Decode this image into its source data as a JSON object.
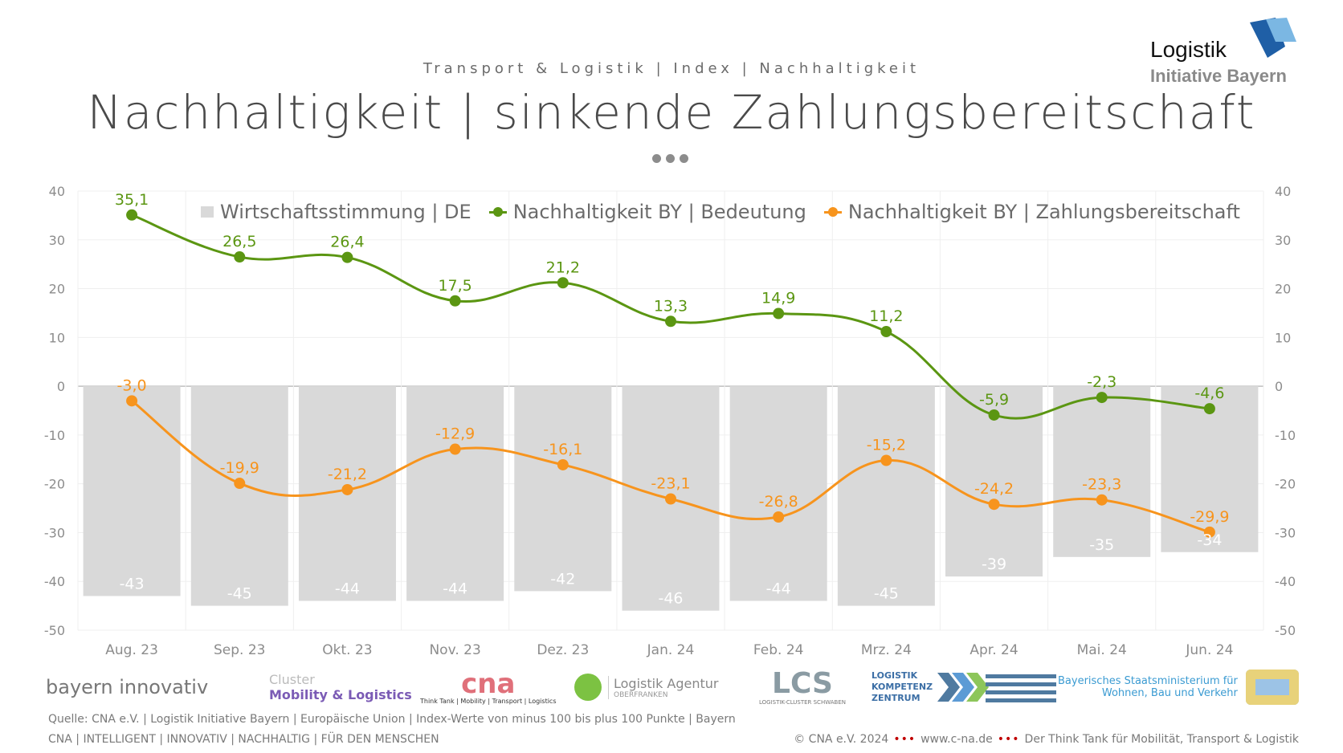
{
  "header": {
    "subtitle": "Transport & Logistik | Index | Nachhaltigkeit",
    "title": "Nachhaltigkeit | sinkende Zahlungsbereitschaft",
    "logo_line1": "Logistik",
    "logo_line2": "Initiative Bayern"
  },
  "chart_data": {
    "type": "bar+line",
    "categories": [
      "Aug. 23",
      "Sep. 23",
      "Okt. 23",
      "Nov. 23",
      "Dez. 23",
      "Jan. 24",
      "Feb. 24",
      "Mrz. 24",
      "Apr. 24",
      "Mai. 24",
      "Jun. 24"
    ],
    "ylim": [
      -50,
      40
    ],
    "yticks": [
      "40",
      "30",
      "20",
      "10",
      "0",
      "-10",
      "-20",
      "-30",
      "-40",
      "-50"
    ],
    "ytick_values": [
      40,
      30,
      20,
      10,
      0,
      -10,
      -20,
      -30,
      -40,
      -50
    ],
    "legend_position": "top",
    "series": [
      {
        "name": "Wirtschaftsstimmung | DE",
        "type": "bar",
        "color": "#d9d9d9",
        "values": [
          -43,
          -45,
          -44,
          -44,
          -42,
          -46,
          -44,
          -45,
          -39,
          -35,
          -34
        ],
        "labels": [
          "-43",
          "-45",
          "-44",
          "-44",
          "-42",
          "-46",
          "-44",
          "-45",
          "-39",
          "-35",
          "-34"
        ]
      },
      {
        "name": "Nachhaltigkeit BY | Bedeutung",
        "type": "line",
        "color": "#5b9612",
        "values": [
          35.1,
          26.5,
          26.4,
          17.5,
          21.2,
          13.3,
          14.9,
          11.2,
          -5.9,
          -2.3,
          -4.6
        ],
        "labels": [
          "35,1",
          "26,5",
          "26,4",
          "17,5",
          "21,2",
          "13,3",
          "14,9",
          "11,2",
          "-5,9",
          "-2,3",
          "-4,6"
        ]
      },
      {
        "name": "Nachhaltigkeit BY | Zahlungsbereitschaft",
        "type": "line",
        "color": "#f7941d",
        "values": [
          -3.0,
          -19.9,
          -21.2,
          -12.9,
          -16.1,
          -23.1,
          -26.8,
          -15.2,
          -24.2,
          -23.3,
          -29.9
        ],
        "labels": [
          "-3,0",
          "-19,9",
          "-21,2",
          "-12,9",
          "-16,1",
          "-23,1",
          "-26,8",
          "-15,2",
          "-24,2",
          "-23,3",
          "-29,9"
        ]
      }
    ]
  },
  "footer": {
    "logos": [
      "bayern innovativ",
      "Cluster",
      "Mobility & Logistics",
      "cna",
      "Think Tank | Mobility | Transport | Logistics",
      "Logistik Agentur",
      "OBERFRANKEN",
      "LCS",
      "LOGISTIK-CLUSTER SCHWABEN",
      "LOGISTIK",
      "KOMPETENZ",
      "ZENTRUM",
      "Bayerisches Staatsministerium für",
      "Wohnen, Bau und Verkehr"
    ],
    "source": "Quelle: CNA e.V. | Logistik Initiative Bayern | Europäische Union | Index-Werte von minus 100 bis plus 100 Punkte | Bayern",
    "tagline": "CNA | INTELLIGENT | INNOVATIV | NACHHALTIG | FÜR DEN MENSCHEN",
    "copyright": "© CNA e.V. 2024",
    "website": "www.c-na.de",
    "claim": "Der Think Tank für Mobilität, Transport & Logistik",
    "separator": "•••"
  }
}
